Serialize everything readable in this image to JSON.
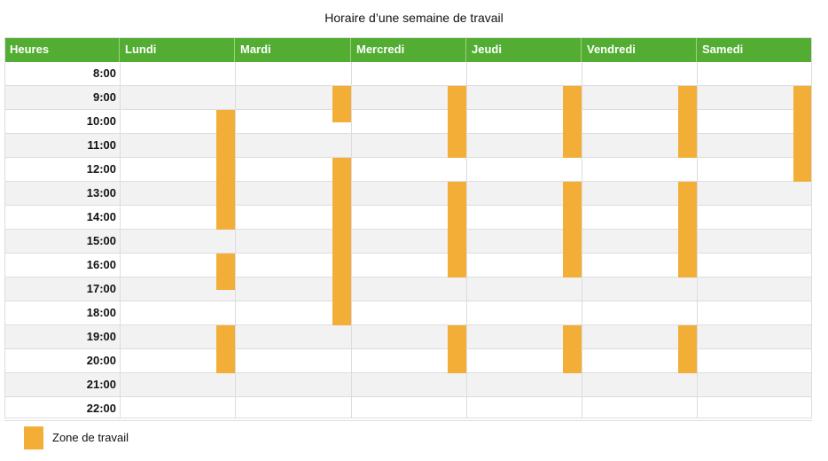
{
  "chart_data": {
    "type": "table",
    "title": "Horaire d’une semaine de travail",
    "columns": [
      "Heures",
      "Lundi",
      "Mardi",
      "Mercredi",
      "Jeudi",
      "Vendredi",
      "Samedi"
    ],
    "hours": [
      "8:00",
      "9:00",
      "10:00",
      "11:00",
      "12:00",
      "13:00",
      "14:00",
      "15:00",
      "16:00",
      "17:00",
      "18:00",
      "19:00",
      "20:00",
      "21:00",
      "22:00"
    ],
    "work_blocks": [
      {
        "day": "Lundi",
        "start": 10,
        "end": 15
      },
      {
        "day": "Lundi",
        "start": 16,
        "end": 17.5
      },
      {
        "day": "Lundi",
        "start": 19,
        "end": 21
      },
      {
        "day": "Mardi",
        "start": 9,
        "end": 10.5
      },
      {
        "day": "Mardi",
        "start": 12,
        "end": 19
      },
      {
        "day": "Mercredi",
        "start": 9,
        "end": 12
      },
      {
        "day": "Mercredi",
        "start": 13,
        "end": 17
      },
      {
        "day": "Mercredi",
        "start": 19,
        "end": 21
      },
      {
        "day": "Jeudi",
        "start": 9,
        "end": 12
      },
      {
        "day": "Jeudi",
        "start": 13,
        "end": 17
      },
      {
        "day": "Jeudi",
        "start": 19,
        "end": 21
      },
      {
        "day": "Vendredi",
        "start": 9,
        "end": 12
      },
      {
        "day": "Vendredi",
        "start": 13,
        "end": 17
      },
      {
        "day": "Vendredi",
        "start": 19,
        "end": 21
      },
      {
        "day": "Samedi",
        "start": 9,
        "end": 13
      }
    ],
    "legend": {
      "label": "Zone de travail",
      "position": "bottom-left"
    }
  },
  "colors": {
    "header_bg": "#52ad32",
    "work_block": "#f2ae37",
    "alt_row": "#f2f2f2",
    "grid": "#dddddd"
  }
}
